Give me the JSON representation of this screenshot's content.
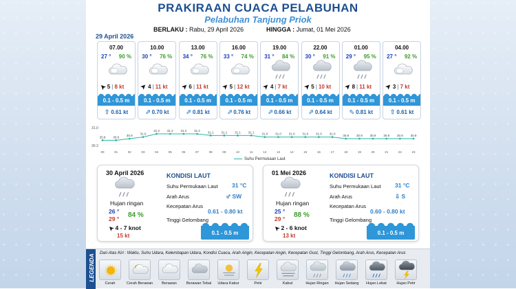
{
  "header": {
    "title": "PRAKIRAAN CUACA PELABUHAN",
    "subtitle": "Pelabuhan Tanjung Priok",
    "valid_label": "BERLAKU :",
    "valid_from": "Rabu, 29 April 2026",
    "until_label": "HINGGA :",
    "valid_to": "Jumat, 01 Mei 2026"
  },
  "hourly_date": "29 April 2026",
  "hourly": [
    {
      "time": "07.00",
      "temp": "27",
      "hum": "90 %",
      "icon": "partly-cloudy-icon",
      "wdir": 315,
      "wind": "5",
      "gust": "8 kt",
      "wave": "0.1 - 0.5 m",
      "cdir": 0,
      "current": "0.61 kt"
    },
    {
      "time": "10.00",
      "temp": "30",
      "hum": "76 %",
      "icon": "partly-cloudy-icon",
      "wdir": 45,
      "wind": "4",
      "gust": "11 kt",
      "wave": "0.1 - 0.5 m",
      "cdir": 45,
      "current": "0.70 kt"
    },
    {
      "time": "13.00",
      "temp": "34",
      "hum": "76 %",
      "icon": "partly-cloudy-icon",
      "wdir": 45,
      "wind": "6",
      "gust": "11 kt",
      "wave": "0.1 - 0.5 m",
      "cdir": 45,
      "current": "0.81 kt"
    },
    {
      "time": "16.00",
      "temp": "33",
      "hum": "74 %",
      "icon": "partly-cloudy-icon",
      "wdir": 45,
      "wind": "5",
      "gust": "12 kt",
      "wave": "0.1 - 0.5 m",
      "cdir": 45,
      "current": "0.76 kt"
    },
    {
      "time": "19.00",
      "temp": "31",
      "hum": "84 %",
      "icon": "light-rain-icon",
      "wdir": 45,
      "wind": "4",
      "gust": "7 kt",
      "wave": "0.1 - 0.5 m",
      "cdir": 45,
      "current": "0.66 kt"
    },
    {
      "time": "22.00",
      "temp": "30",
      "hum": "91 %",
      "icon": "light-rain-icon",
      "wdir": 45,
      "wind": "5",
      "gust": "10 kt",
      "wave": "0.1 - 0.5 m",
      "cdir": 45,
      "current": "0.64 kt"
    },
    {
      "time": "01.00",
      "temp": "29",
      "hum": "95 %",
      "icon": "light-rain-icon",
      "wdir": 45,
      "wind": "8",
      "gust": "11 kt",
      "wave": "0.1 - 0.5 m",
      "cdir": 315,
      "current": "0.81 kt"
    },
    {
      "time": "04.00",
      "temp": "27",
      "hum": "92 %",
      "icon": "partly-cloudy-icon",
      "wdir": 45,
      "wind": "3",
      "gust": "7 kt",
      "wave": "0.1 - 0.5 m",
      "cdir": 0,
      "current": "0.61 kt"
    }
  ],
  "chart_data": {
    "type": "line",
    "x": [
      "00",
      "01",
      "02",
      "03",
      "04",
      "05",
      "06",
      "07",
      "08",
      "09",
      "10",
      "11",
      "12",
      "13",
      "14",
      "15",
      "16",
      "17",
      "18",
      "19",
      "20",
      "21",
      "22",
      "23"
    ],
    "series": [
      {
        "name": "Suhu Permukaan Laut",
        "values": [
          30.8,
          30.8,
          30.9,
          31.0,
          31.2,
          31.2,
          31.2,
          31.2,
          31.1,
          31.1,
          31.1,
          31.1,
          31.0,
          31.0,
          31.0,
          31.0,
          31.0,
          31.0,
          30.9,
          30.9,
          30.9,
          30.9,
          30.9,
          30.9
        ]
      }
    ],
    "y_ticks": [
      "31.0",
      "30.3"
    ],
    "ylim": [
      30.3,
      31.5
    ],
    "grid": false,
    "legend": "bottom"
  },
  "daily": [
    {
      "date": "30 April 2026",
      "icon": "light-rain-icon",
      "condition": "Hujan ringan",
      "tmax": "26",
      "tmin": "29",
      "hum": "84 %",
      "wdir": 315,
      "wind": "4 - 7 knot",
      "gust": "15 kt",
      "sea_head": "KONDISI LAUT",
      "sst_label": "Suhu Permukaan Laut",
      "sst": "31 °C",
      "cur_dir_label": "Arah Arus",
      "cur_dir": "SW",
      "cur_dir_deg": 45,
      "cur_speed_label": "Kecepatan Arus",
      "cur_speed": "0.61 - 0.80 kt",
      "wave_label": "Tinggi Gelombang",
      "wave": "0.1 - 0.5 m"
    },
    {
      "date": "01 Mei 2026",
      "icon": "light-rain-icon",
      "condition": "Hujan ringan",
      "tmax": "25",
      "tmin": "29",
      "hum": "88 %",
      "wdir": 315,
      "wind": "2 - 6 knot",
      "gust": "13 kt",
      "sea_head": "KONDISI LAUT",
      "sst_label": "Suhu Permukaan Laut",
      "sst": "31 °C",
      "cur_dir_label": "Arah Arus",
      "cur_dir": "S",
      "cur_dir_deg": 0,
      "cur_speed_label": "Kecepatan Arus",
      "cur_speed": "0.60 - 0.80 kt",
      "wave_label": "Tinggi Gelombang",
      "wave": "0.1 - 0.5 m"
    }
  ],
  "legend": {
    "tab": "LEGENDA",
    "description": "Dari Atas Kiri : Waktu, Suhu Udara, Kelembapan Udara, Kondisi Cuaca, Arah Angin, Kecepatan Angin, Kecepatan Gust, Tinggi Gelombang, Arah Arus, Kecepatan Arus",
    "items": [
      {
        "label": "Cerah",
        "icon": "sun-icon"
      },
      {
        "label": "Cerah Berawan",
        "icon": "sun-cloud-icon"
      },
      {
        "label": "Berawan",
        "icon": "cloud-icon"
      },
      {
        "label": "Berawan Tebal",
        "icon": "thick-cloud-icon"
      },
      {
        "label": "Udara Kabur",
        "icon": "haze-icon"
      },
      {
        "label": "Petir",
        "icon": "lightning-icon"
      },
      {
        "label": "Kabut",
        "icon": "fog-icon"
      },
      {
        "label": "Hujan Ringan",
        "icon": "light-rain-icon"
      },
      {
        "label": "Hujan Sedang",
        "icon": "moderate-rain-icon"
      },
      {
        "label": "Hujan Lebat",
        "icon": "heavy-rain-icon"
      },
      {
        "label": "Hujan Petir",
        "icon": "thunder-rain-icon"
      }
    ]
  }
}
